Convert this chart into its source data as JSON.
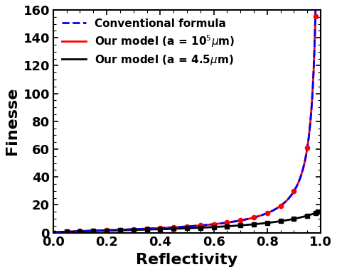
{
  "title": "",
  "xlabel": "Reflectivity",
  "ylabel": "Finesse",
  "xlim": [
    0.0,
    1.0
  ],
  "ylim": [
    0,
    160
  ],
  "yticks": [
    0,
    20,
    40,
    60,
    80,
    100,
    120,
    140,
    160
  ],
  "xticks": [
    0.0,
    0.2,
    0.4,
    0.6,
    0.8,
    1.0
  ],
  "conventional_color": "#0000ff",
  "model_large_color": "#ff0000",
  "model_small_color": "#000000",
  "background_color": "#ffffff",
  "legend_labels": [
    "Conventional formula",
    "Our model (a = 10$^5$$\\mu$m)",
    "Our model (a = 4.5$\\mu$m)"
  ],
  "marker_positions_large": [
    0.0,
    0.05,
    0.1,
    0.15,
    0.2,
    0.25,
    0.3,
    0.35,
    0.4,
    0.45,
    0.5,
    0.55,
    0.6,
    0.65,
    0.7,
    0.75,
    0.8,
    0.85,
    0.9,
    0.95,
    0.98,
    0.99
  ],
  "marker_positions_small": [
    0.0,
    0.05,
    0.1,
    0.15,
    0.2,
    0.25,
    0.3,
    0.35,
    0.4,
    0.45,
    0.5,
    0.55,
    0.6,
    0.65,
    0.7,
    0.75,
    0.8,
    0.85,
    0.9,
    0.95,
    0.98,
    0.99
  ],
  "xlabel_fontsize": 16,
  "ylabel_fontsize": 16,
  "tick_fontsize": 13,
  "legend_fontsize": 11,
  "loss_small": 0.2,
  "loss_large": 0.0
}
